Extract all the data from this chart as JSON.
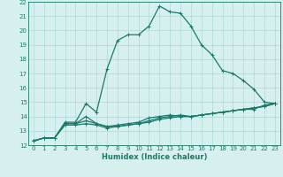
{
  "title": "",
  "xlabel": "Humidex (Indice chaleur)",
  "ylabel": "",
  "bg_color": "#d6f0ef",
  "grid_color": "#b0d8d6",
  "line_color": "#1a7a6a",
  "xlim": [
    -0.5,
    23.5
  ],
  "ylim": [
    12,
    22
  ],
  "xticks": [
    0,
    1,
    2,
    3,
    4,
    5,
    6,
    7,
    8,
    9,
    10,
    11,
    12,
    13,
    14,
    15,
    16,
    17,
    18,
    19,
    20,
    21,
    22,
    23
  ],
  "yticks": [
    12,
    13,
    14,
    15,
    16,
    17,
    18,
    19,
    20,
    21,
    22
  ],
  "series": [
    [
      12.3,
      12.5,
      12.5,
      13.6,
      13.6,
      14.9,
      14.3,
      17.3,
      19.3,
      19.7,
      19.7,
      20.3,
      21.7,
      21.3,
      21.2,
      20.3,
      19.0,
      18.3,
      17.2,
      17.0,
      16.5,
      15.9,
      15.0,
      14.9
    ],
    [
      12.3,
      12.5,
      12.5,
      13.5,
      13.5,
      14.0,
      13.5,
      13.3,
      13.4,
      13.5,
      13.6,
      13.9,
      14.0,
      14.1,
      14.0,
      14.0,
      14.1,
      14.2,
      14.3,
      14.4,
      14.5,
      14.5,
      14.8,
      14.9
    ],
    [
      12.3,
      12.5,
      12.5,
      13.5,
      13.5,
      13.7,
      13.5,
      13.3,
      13.3,
      13.4,
      13.5,
      13.7,
      13.9,
      14.0,
      14.1,
      14.0,
      14.1,
      14.2,
      14.3,
      14.4,
      14.5,
      14.6,
      14.7,
      14.9
    ],
    [
      12.3,
      12.5,
      12.5,
      13.4,
      13.4,
      13.5,
      13.4,
      13.2,
      13.3,
      13.4,
      13.5,
      13.6,
      13.8,
      13.9,
      14.0,
      14.0,
      14.1,
      14.2,
      14.3,
      14.4,
      14.5,
      14.6,
      14.7,
      14.9
    ]
  ],
  "marker": "+",
  "markersize": 3.5,
  "linewidth": 0.9,
  "tick_fontsize": 5.0,
  "xlabel_fontsize": 6.0
}
